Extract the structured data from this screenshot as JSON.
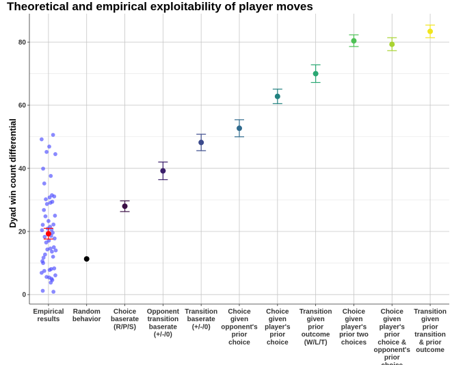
{
  "chart_data": {
    "type": "scatter",
    "title": "Theoretical and empirical exploitability of player moves",
    "xlabel": "",
    "ylabel": "Dyad win count differential",
    "ylim": [
      -3,
      89
    ],
    "yticks": [
      0,
      20,
      40,
      60,
      80
    ],
    "grid": true,
    "categories": [
      "Empirical\nresults",
      "Random\nbehavior",
      "Choice\nbaserate\n(R/P/S)",
      "Opponent\ntransition\nbaserate\n(+/-/0)",
      "Transition\nbaserate\n(+/-/0)",
      "Choice\ngiven\nopponent's\nprior\nchoice",
      "Choice\ngiven\nplayer's\nprior\nchoice",
      "Transition\ngiven\nprior\noutcome\n(W/L/T)",
      "Choice\ngiven\nplayer's\nprior two\nchoices",
      "Choice\ngiven\nplayer's\nprior\nchoice &\nopponent's\nprior\nchoice",
      "Transition\ngiven\nprior\ntransition\n& prior\noutcome"
    ],
    "series": [
      {
        "values": [
          19.3,
          11.3,
          28.0,
          39.2,
          48.2,
          52.7,
          62.8,
          70.0,
          80.4,
          79.3,
          83.4
        ],
        "err_low": [
          17.6,
          null,
          26.3,
          36.4,
          45.6,
          50.0,
          60.5,
          67.2,
          78.6,
          77.3,
          81.4
        ],
        "err_high": [
          21.0,
          null,
          29.7,
          42.0,
          50.8,
          55.4,
          65.1,
          72.8,
          82.3,
          81.4,
          85.4
        ],
        "colors": [
          "#ff0000",
          "#000000",
          "#3b0f45",
          "#3a1e6a",
          "#3b4a8c",
          "#2f6a8d",
          "#21817f",
          "#2aa873",
          "#4dc155",
          "#a9d331",
          "#f1e51d"
        ]
      },
      {
        "jitter": [
          [
            -0.18,
            49.2
          ],
          [
            0.12,
            50.6
          ],
          [
            -0.14,
            39.9
          ],
          [
            0.02,
            46.9
          ],
          [
            0.18,
            44.5
          ],
          [
            -0.05,
            45.2
          ],
          [
            0.06,
            37.6
          ],
          [
            -0.11,
            35.2
          ],
          [
            0.09,
            31.5
          ],
          [
            0.15,
            31.1
          ],
          [
            -0.07,
            30.2
          ],
          [
            0.03,
            30.8
          ],
          [
            0.1,
            29.4
          ],
          [
            0.05,
            29.1
          ],
          [
            -0.04,
            28.7
          ],
          [
            -0.12,
            26.8
          ],
          [
            0.17,
            25.0
          ],
          [
            -0.08,
            24.8
          ],
          [
            0.0,
            23.3
          ],
          [
            0.13,
            22.2
          ],
          [
            -0.15,
            22.1
          ],
          [
            0.04,
            21.5
          ],
          [
            -0.02,
            20.9
          ],
          [
            0.08,
            20.6
          ],
          [
            -0.17,
            20.4
          ],
          [
            0.11,
            19.6
          ],
          [
            -0.01,
            19.0
          ],
          [
            0.07,
            18.6
          ],
          [
            -0.1,
            18.3
          ],
          [
            0.16,
            17.8
          ],
          [
            0.01,
            17.1
          ],
          [
            -0.06,
            16.5
          ],
          [
            0.14,
            15.0
          ],
          [
            0.05,
            14.6
          ],
          [
            -0.03,
            14.3
          ],
          [
            0.19,
            14.0
          ],
          [
            0.09,
            13.6
          ],
          [
            -0.09,
            12.7
          ],
          [
            0.12,
            12.0
          ],
          [
            -0.13,
            11.7
          ],
          [
            -0.16,
            10.6
          ],
          [
            -0.14,
            10.0
          ],
          [
            0.07,
            8.1
          ],
          [
            0.15,
            8.3
          ],
          [
            0.03,
            7.8
          ],
          [
            -0.11,
            7.5
          ],
          [
            -0.18,
            6.9
          ],
          [
            0.18,
            6.1
          ],
          [
            -0.05,
            5.6
          ],
          [
            0.02,
            5.4
          ],
          [
            0.08,
            5.0
          ],
          [
            0.1,
            4.6
          ],
          [
            0.06,
            3.8
          ],
          [
            -0.15,
            1.2
          ],
          [
            0.13,
            0.9
          ]
        ],
        "color": "#4b4bff"
      }
    ]
  }
}
